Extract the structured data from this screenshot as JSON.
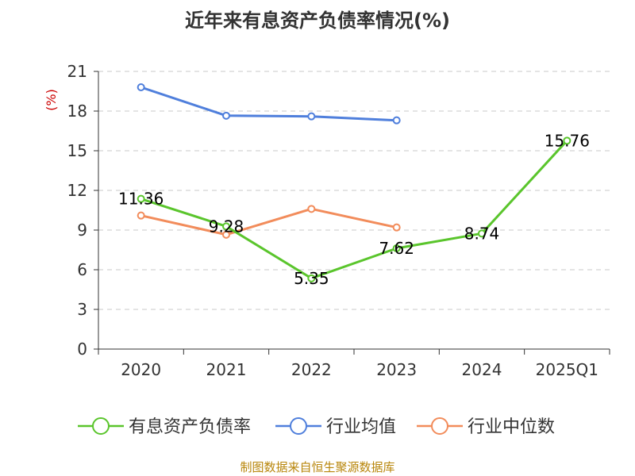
{
  "chart_data": {
    "type": "line",
    "title": "近年来有息资产负债率情况(%)",
    "ylabel": "(%)",
    "categories": [
      "2020",
      "2021",
      "2022",
      "2023",
      "2024",
      "2025Q1"
    ],
    "ylim": [
      0,
      21
    ],
    "yticks": [
      "0",
      "3",
      "6",
      "9",
      "12",
      "15",
      "18",
      "21"
    ],
    "grid": true,
    "legend_position": "bottom",
    "series": [
      {
        "name": "有息资产负债率",
        "color": "#5ac52c",
        "values": [
          11.36,
          9.28,
          5.35,
          7.62,
          8.74,
          15.76
        ],
        "labels": [
          "11.36",
          "9.28",
          "5.35",
          "7.62",
          "8.74",
          "15.76"
        ]
      },
      {
        "name": "行业均值",
        "color": "#4f7fdc",
        "values": [
          19.8,
          17.65,
          17.6,
          17.3,
          null,
          null
        ],
        "labels": []
      },
      {
        "name": "行业中位数",
        "color": "#f28c5b",
        "values": [
          10.1,
          8.65,
          10.6,
          9.2,
          null,
          null
        ],
        "labels": []
      }
    ],
    "source": "制图数据来自恒生聚源数据库"
  }
}
